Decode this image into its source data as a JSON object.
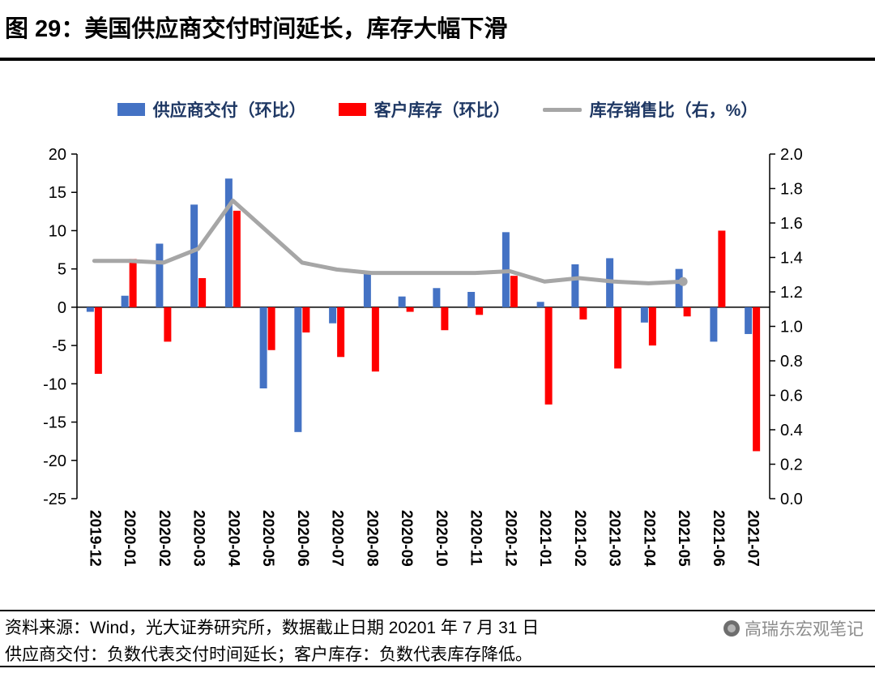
{
  "header": {
    "title": "图 29：美国供应商交付时间延长，库存大幅下滑"
  },
  "chart_data": {
    "type": "bar",
    "title": "美国供应商交付时间延长，库存大幅下滑",
    "categories": [
      "2019-12",
      "2020-01",
      "2020-02",
      "2020-03",
      "2020-04",
      "2020-05",
      "2020-06",
      "2020-07",
      "2020-08",
      "2020-09",
      "2020-10",
      "2020-11",
      "2020-12",
      "2021-01",
      "2021-02",
      "2021-03",
      "2021-04",
      "2021-05",
      "2021-06",
      "2021-07"
    ],
    "series": [
      {
        "name": "供应商交付（环比）",
        "type": "bar",
        "axis": "left",
        "color": "#4472C4",
        "values": [
          -0.6,
          1.5,
          8.3,
          13.4,
          16.8,
          -10.6,
          -16.3,
          -2.1,
          4.5,
          1.4,
          2.5,
          2.0,
          9.8,
          0.7,
          5.6,
          6.4,
          -2.0,
          5.0,
          -4.5,
          -3.5
        ]
      },
      {
        "name": "客户库存（环比）",
        "type": "bar",
        "axis": "left",
        "color": "#FF0000",
        "values": [
          -8.7,
          6.3,
          -4.5,
          3.8,
          12.6,
          -5.6,
          -3.3,
          -6.5,
          -8.4,
          -0.6,
          -3.0,
          -1.0,
          4.1,
          -12.7,
          -1.6,
          -8.0,
          -5.0,
          -1.2,
          10.0,
          -18.8
        ]
      },
      {
        "name": "库存销售比（右，%）",
        "type": "line",
        "axis": "right",
        "color": "#A6A6A6",
        "values": [
          1.38,
          1.38,
          1.37,
          1.45,
          1.73,
          1.55,
          1.37,
          1.33,
          1.31,
          1.31,
          1.31,
          1.31,
          1.32,
          1.26,
          1.28,
          1.26,
          1.25,
          1.26,
          null,
          null
        ]
      }
    ],
    "left_axis": {
      "min": -25,
      "max": 20,
      "step": 5
    },
    "right_axis": {
      "min": 0.0,
      "max": 2.0,
      "step": 0.2
    },
    "legend_position": "top",
    "grid": false
  },
  "footer": {
    "source_line": "资料来源：Wind，光大证券研究所，数据截止日期 20201 年 7 月 31 日",
    "note_line": "供应商交付：负数代表交付时间延长；客户库存：负数代表库存降低。",
    "watermark": "高瑞东宏观笔记"
  }
}
